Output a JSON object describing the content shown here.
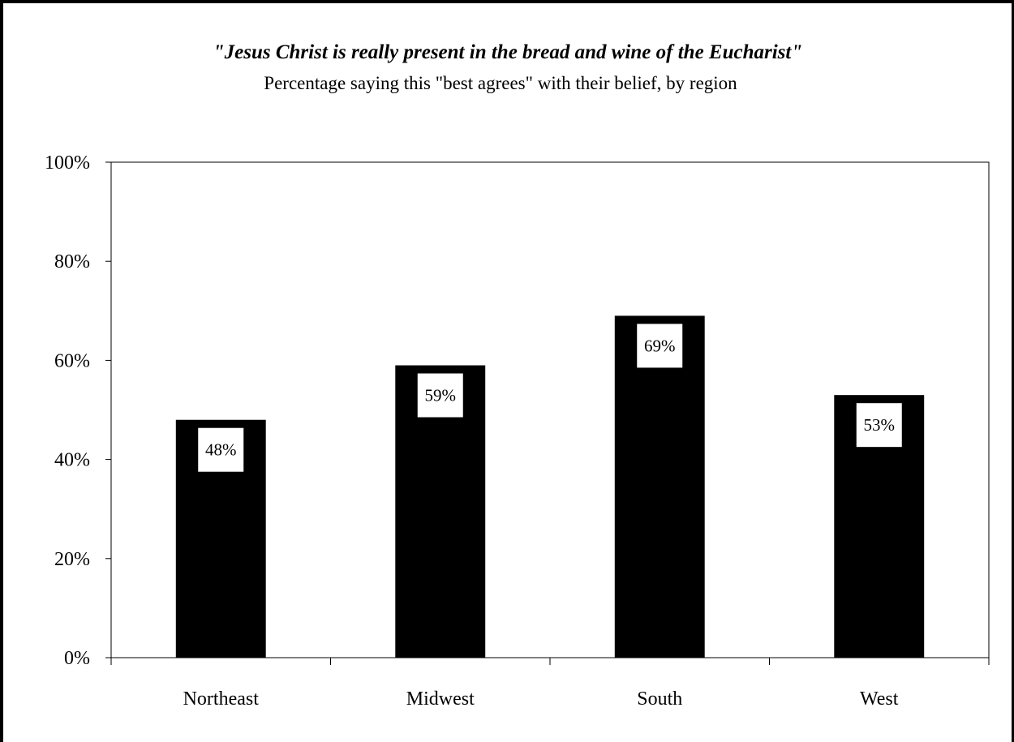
{
  "chart_data": {
    "type": "bar",
    "title": "\"Jesus Christ is really present in the bread and wine of the Eucharist\"",
    "subtitle": "Percentage saying this \"best agrees\" with their belief, by region",
    "categories": [
      "Northeast",
      "Midwest",
      "South",
      "West"
    ],
    "values": [
      48,
      59,
      69,
      53
    ],
    "data_labels": [
      "48%",
      "59%",
      "69%",
      "53%"
    ],
    "xlabel": "",
    "ylabel": "",
    "ylim": [
      0,
      100
    ],
    "yticks": [
      0,
      20,
      40,
      60,
      80,
      100
    ],
    "ytick_labels": [
      "0%",
      "20%",
      "40%",
      "60%",
      "80%",
      "100%"
    ],
    "grid": false,
    "legend": "none",
    "bar_color": "#000000",
    "label_box_color": "#ffffff"
  }
}
